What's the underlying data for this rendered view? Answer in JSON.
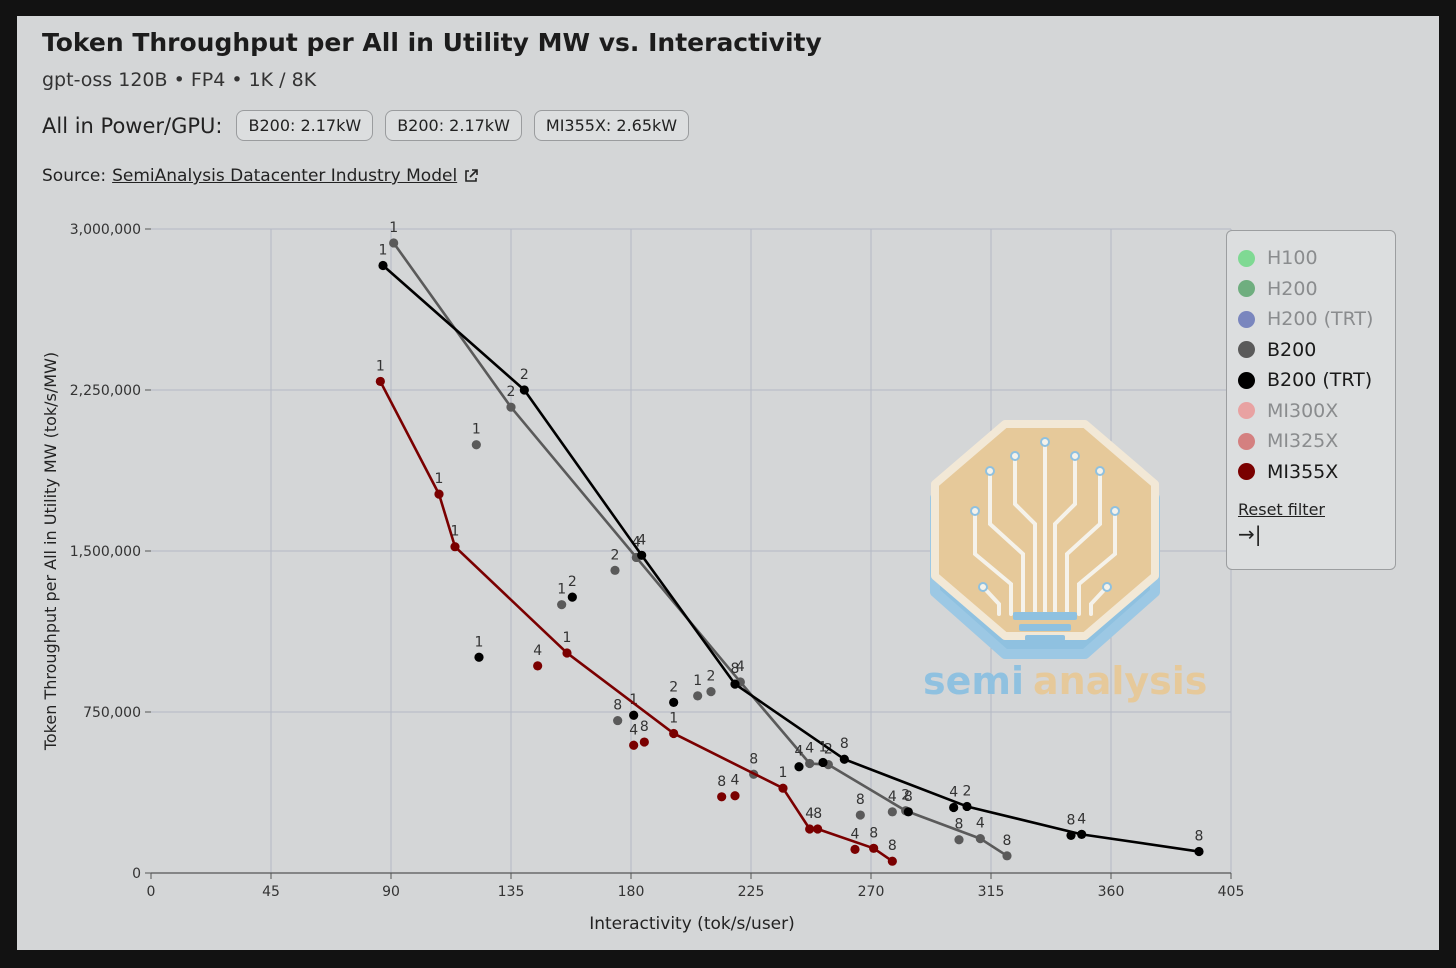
{
  "header": {
    "title": "Token Throughput per All in Utility MW vs. Interactivity",
    "subtitle": "gpt-oss 120B • FP4 • 1K / 8K",
    "power_label": "All in Power/GPU:",
    "power_chips": [
      "B200: 2.17kW",
      "B200: 2.17kW",
      "MI355X: 2.65kW"
    ],
    "source_prefix": "Source:",
    "source_link": "SemiAnalysis Datacenter Industry Model",
    "source_icon": "external-link-icon"
  },
  "legend": {
    "items": [
      {
        "label": "H100",
        "color": "#7fd993",
        "text_color": "#8a8c8e"
      },
      {
        "label": "H200",
        "color": "#6fae7f",
        "text_color": "#8a8c8e"
      },
      {
        "label": "H200 (TRT)",
        "color": "#7a86be",
        "text_color": "#8a8c8e"
      },
      {
        "label": "B200",
        "color": "#5a5a5a",
        "text_color": "#1a1a1a"
      },
      {
        "label": "B200 (TRT)",
        "color": "#000000",
        "text_color": "#1a1a1a"
      },
      {
        "label": "MI300X",
        "color": "#e8a2a2",
        "text_color": "#8a8c8e"
      },
      {
        "label": "MI325X",
        "color": "#d48080",
        "text_color": "#8a8c8e"
      },
      {
        "label": "MI355X",
        "color": "#7a0000",
        "text_color": "#1a1a1a"
      }
    ],
    "reset_label": "Reset filter",
    "reset_icon": "→|"
  },
  "watermark": {
    "text_a": "semi",
    "text_b": "analysis"
  },
  "chart_data": {
    "type": "scatter",
    "title": "Token Throughput per All in Utility MW vs. Interactivity",
    "xlabel": "Interactivity (tok/s/user)",
    "ylabel": "Token Throughput per All in Utility MW (tok/s/MW)",
    "xlim": [
      0,
      405
    ],
    "ylim": [
      0,
      3000000
    ],
    "xticks": [
      0,
      45,
      90,
      135,
      180,
      225,
      270,
      315,
      360,
      405
    ],
    "xtick_labels": [
      "0",
      "45",
      "90",
      "135",
      "180",
      "225",
      "270",
      "315",
      "360",
      "405"
    ],
    "yticks": [
      0,
      750000,
      1500000,
      2250000,
      3000000
    ],
    "ytick_labels": [
      "0",
      "750,000",
      "1,500,000",
      "2,250,000",
      "3,000,000"
    ],
    "grid": true,
    "series": [
      {
        "name": "B200",
        "color": "#5a5a5a",
        "frontier": [
          {
            "x": 91,
            "y": 2935000,
            "label": "1"
          },
          {
            "x": 135,
            "y": 2170000,
            "label": "2"
          },
          {
            "x": 182,
            "y": 1470000,
            "label": "4"
          },
          {
            "x": 221,
            "y": 890000,
            "label": "4"
          },
          {
            "x": 247,
            "y": 510000,
            "label": "4"
          },
          {
            "x": 254,
            "y": 505000,
            "label": "2"
          },
          {
            "x": 283,
            "y": 290000,
            "label": "2"
          },
          {
            "x": 311,
            "y": 160000,
            "label": "4"
          },
          {
            "x": 321,
            "y": 80000,
            "label": "8"
          }
        ],
        "scatter": [
          {
            "x": 122,
            "y": 1995000,
            "label": "1"
          },
          {
            "x": 154,
            "y": 1250000,
            "label": "1"
          },
          {
            "x": 174,
            "y": 1410000,
            "label": "2"
          },
          {
            "x": 175,
            "y": 710000,
            "label": "8"
          },
          {
            "x": 205,
            "y": 825000,
            "label": "1"
          },
          {
            "x": 210,
            "y": 845000,
            "label": "2"
          },
          {
            "x": 226,
            "y": 460000,
            "label": "8"
          },
          {
            "x": 266,
            "y": 270000,
            "label": "8"
          },
          {
            "x": 278,
            "y": 285000,
            "label": "4"
          },
          {
            "x": 303,
            "y": 155000,
            "label": "8"
          }
        ]
      },
      {
        "name": "B200 (TRT)",
        "color": "#000000",
        "frontier": [
          {
            "x": 87,
            "y": 2830000,
            "label": "1"
          },
          {
            "x": 140,
            "y": 2250000,
            "label": "2"
          },
          {
            "x": 184,
            "y": 1480000,
            "label": "4"
          },
          {
            "x": 219,
            "y": 880000,
            "label": "8"
          },
          {
            "x": 260,
            "y": 530000,
            "label": "8"
          },
          {
            "x": 306,
            "y": 310000,
            "label": "2"
          },
          {
            "x": 349,
            "y": 180000,
            "label": "4"
          },
          {
            "x": 393,
            "y": 100000,
            "label": "8"
          }
        ],
        "scatter": [
          {
            "x": 123,
            "y": 1005000,
            "label": "1"
          },
          {
            "x": 158,
            "y": 1285000,
            "label": "2"
          },
          {
            "x": 181,
            "y": 735000,
            "label": "1"
          },
          {
            "x": 196,
            "y": 795000,
            "label": "2"
          },
          {
            "x": 243,
            "y": 495000,
            "label": "4"
          },
          {
            "x": 252,
            "y": 515000,
            "label": "1"
          },
          {
            "x": 284,
            "y": 285000,
            "label": "8"
          },
          {
            "x": 301,
            "y": 305000,
            "label": "4"
          },
          {
            "x": 345,
            "y": 175000,
            "label": "8"
          }
        ]
      },
      {
        "name": "MI355X",
        "color": "#7a0000",
        "frontier": [
          {
            "x": 86,
            "y": 2290000,
            "label": "1"
          },
          {
            "x": 108,
            "y": 1765000,
            "label": "1"
          },
          {
            "x": 114,
            "y": 1520000,
            "label": "1"
          },
          {
            "x": 156,
            "y": 1025000,
            "label": "1"
          },
          {
            "x": 196,
            "y": 650000,
            "label": "1"
          },
          {
            "x": 237,
            "y": 395000,
            "label": "1"
          },
          {
            "x": 247,
            "y": 205000,
            "label": "4"
          },
          {
            "x": 250,
            "y": 205000,
            "label": "8"
          },
          {
            "x": 271,
            "y": 115000,
            "label": "8"
          },
          {
            "x": 278,
            "y": 55000,
            "label": "8"
          }
        ],
        "scatter": [
          {
            "x": 145,
            "y": 965000,
            "label": "4"
          },
          {
            "x": 181,
            "y": 595000,
            "label": "4"
          },
          {
            "x": 185,
            "y": 610000,
            "label": "8"
          },
          {
            "x": 214,
            "y": 355000,
            "label": "8"
          },
          {
            "x": 219,
            "y": 360000,
            "label": "4"
          },
          {
            "x": 264,
            "y": 110000,
            "label": "4"
          }
        ]
      }
    ]
  }
}
